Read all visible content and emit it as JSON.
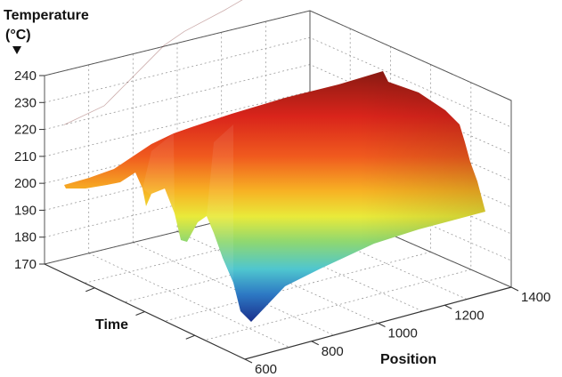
{
  "chart_data": {
    "type": "surface",
    "title": "",
    "zlabel": "Temperature\n(°C)",
    "xlabel": "Position",
    "ylabel": "Time",
    "z_ticks": [
      "240",
      "230",
      "220",
      "210",
      "200",
      "190",
      "180",
      "170"
    ],
    "x_ticks": [
      "600",
      "800",
      "1000",
      "1200",
      "1400"
    ],
    "zlim": [
      170,
      240
    ],
    "xlim": [
      600,
      1400
    ],
    "grid": true,
    "colormap": "jet",
    "surface_ridge": {
      "position": [
        600,
        700,
        750,
        800,
        850,
        900,
        1000,
        1100,
        1200,
        1300,
        1400
      ],
      "max_temperature": [
        199,
        201,
        207,
        213,
        219,
        222,
        225,
        229,
        232,
        235,
        236
      ],
      "min_temperature": [
        197,
        193,
        188,
        180,
        178,
        172,
        175,
        181,
        185,
        188,
        190
      ]
    }
  }
}
